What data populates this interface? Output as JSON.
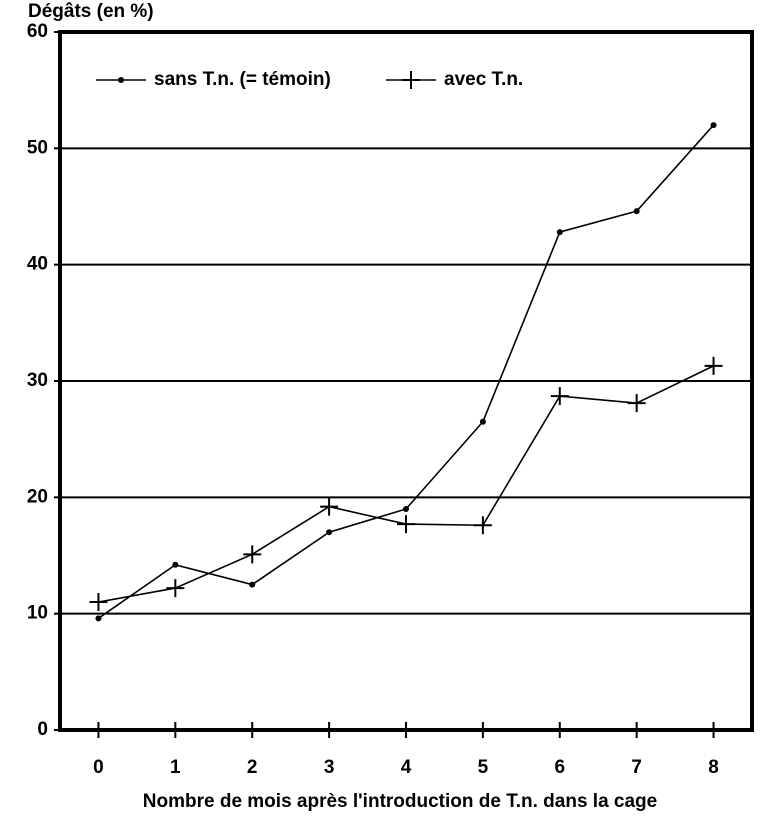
{
  "chart_data": {
    "type": "line",
    "title": "Dégâts (en %)",
    "x_label": "Nombre de mois après l'introduction de T.n. dans la cage",
    "x": [
      0,
      1,
      2,
      3,
      4,
      5,
      6,
      7,
      8
    ],
    "series": [
      {
        "name": "sans T.n. (= témoin)",
        "marker": "dot",
        "color": "#000000",
        "values": [
          9.6,
          14.2,
          12.5,
          17,
          19,
          26.5,
          42.8,
          44.6,
          52
        ]
      },
      {
        "name": "avec T.n.",
        "marker": "plus",
        "color": "#000000",
        "values": [
          11,
          12.2,
          15.1,
          19.2,
          17.7,
          17.6,
          28.7,
          28.1,
          31.3
        ]
      }
    ],
    "xlim": [
      -0.5,
      8.5
    ],
    "xticks": [
      0,
      1,
      2,
      3,
      4,
      5,
      6,
      7,
      8
    ],
    "ylim": [
      0,
      60
    ],
    "yticks": [
      0,
      10,
      20,
      30,
      40,
      50,
      60
    ],
    "grid": true,
    "legend": "top-left"
  }
}
